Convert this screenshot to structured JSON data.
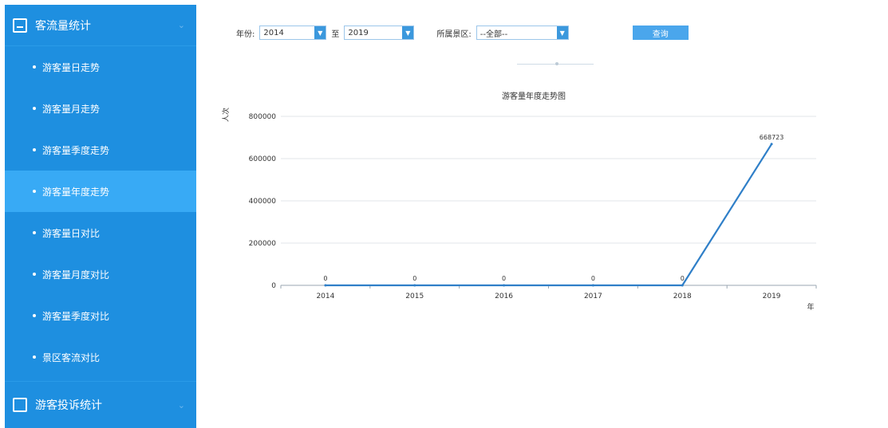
{
  "sidebar": {
    "header": {
      "label": "客流量统计"
    },
    "items": [
      {
        "label": "游客量日走势"
      },
      {
        "label": "游客量月走势"
      },
      {
        "label": "游客量季度走势"
      },
      {
        "label": "游客量年度走势"
      },
      {
        "label": "游客量日对比"
      },
      {
        "label": "游客量月度对比"
      },
      {
        "label": "游客量季度对比"
      },
      {
        "label": "景区客流对比"
      }
    ],
    "footer": {
      "label": "游客投诉统计"
    }
  },
  "filters": {
    "year_label": "年份:",
    "start_year": "2014",
    "to_label": "至",
    "end_year": "2019",
    "scenic_label": "所属景区:",
    "scenic_value": "--全部--",
    "query_label": "查询"
  },
  "chart_data": {
    "type": "line",
    "title": "游客量年度走势图",
    "ylabel": "人次",
    "xlabel": "年",
    "categories": [
      "2014",
      "2015",
      "2016",
      "2017",
      "2018",
      "2019"
    ],
    "values": [
      0,
      0,
      0,
      0,
      0,
      668723
    ],
    "ylim": [
      0,
      800000
    ],
    "yticks": [
      "0",
      "200000",
      "400000",
      "600000",
      "800000"
    ],
    "grid": true,
    "colors": {
      "line": "#2f7fc8",
      "grid": "#e1e5ea"
    }
  }
}
